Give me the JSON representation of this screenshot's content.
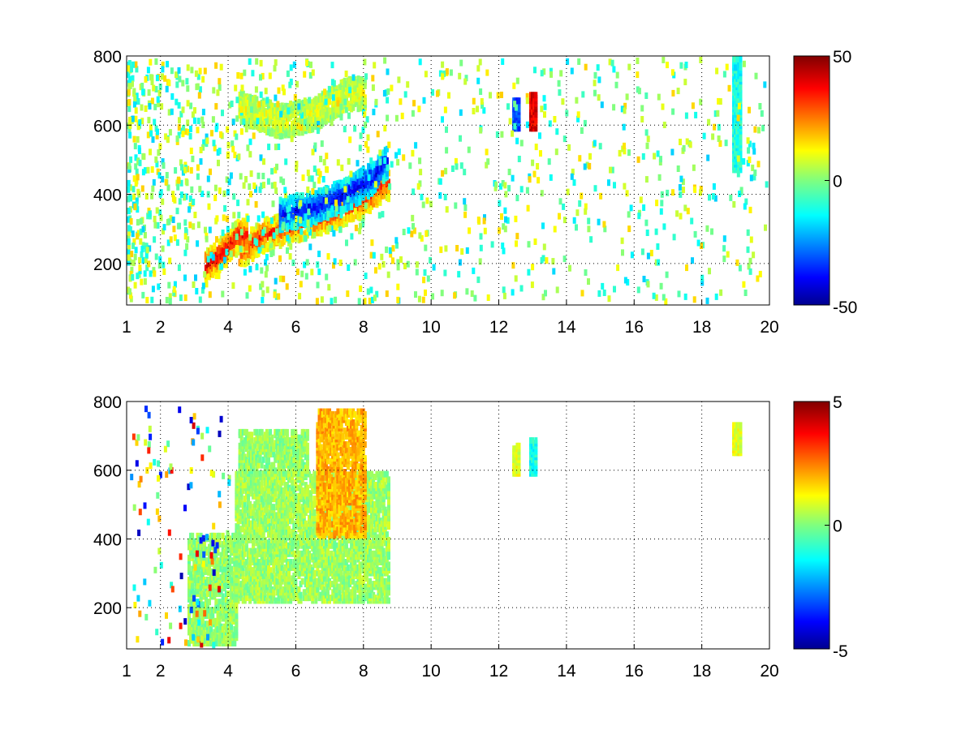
{
  "chart_data": [
    {
      "type": "heatmap",
      "title": "",
      "xlabel": "",
      "ylabel": "",
      "xlim": [
        1,
        20
      ],
      "ylim": [
        80,
        800
      ],
      "xticks": [
        1,
        2,
        4,
        6,
        8,
        10,
        12,
        14,
        16,
        18,
        20
      ],
      "yticks": [
        200,
        400,
        600,
        800
      ],
      "grid": true,
      "colormap": "jet",
      "colorbar": {
        "range": [
          -50,
          50
        ],
        "ticks": [
          -50,
          0,
          50
        ]
      },
      "features": [
        {
          "name": "lower arc",
          "x_range": [
            4.3,
            8.7
          ],
          "y_center_at_x": [
            [
              4.3,
              240
            ],
            [
              5.0,
              290
            ],
            [
              6.0,
              320
            ],
            [
              7.0,
              350
            ],
            [
              8.0,
              390
            ],
            [
              8.6,
              440
            ]
          ],
          "value": 35
        },
        {
          "name": "upper arc",
          "x_range": [
            5.5,
            8.7
          ],
          "y_center_at_x": [
            [
              5.5,
              350
            ],
            [
              6.5,
              370
            ],
            [
              7.5,
              410
            ],
            [
              8.3,
              460
            ],
            [
              8.7,
              510
            ]
          ],
          "value": -40
        },
        {
          "name": "rising branch",
          "x_range": [
            3.3,
            4.5
          ],
          "y_center_at_x": [
            [
              3.3,
              200
            ],
            [
              3.8,
              240
            ],
            [
              4.3,
              290
            ]
          ],
          "value": 40
        },
        {
          "name": "upper loop",
          "x_range": [
            4.3,
            8.0
          ],
          "y_center_at_x": [
            [
              4.3,
              660
            ],
            [
              5.5,
              620
            ],
            [
              6.5,
              640
            ],
            [
              7.5,
              700
            ]
          ],
          "value": 10
        },
        {
          "name": "strip at 12.5",
          "x_range": [
            12.4,
            12.6
          ],
          "y_range": [
            600,
            680
          ],
          "value": -30
        },
        {
          "name": "strip at 13",
          "x_range": [
            12.9,
            13.1
          ],
          "y_range": [
            600,
            700
          ],
          "value": 40
        },
        {
          "name": "strip at 19",
          "x_range": [
            18.9,
            19.1
          ],
          "y_range": [
            480,
            800
          ],
          "value": -10
        }
      ]
    },
    {
      "type": "heatmap",
      "title": "",
      "xlabel": "",
      "ylabel": "",
      "xlim": [
        1,
        20
      ],
      "ylim": [
        80,
        800
      ],
      "xticks": [
        1,
        2,
        4,
        6,
        8,
        10,
        12,
        14,
        16,
        18,
        20
      ],
      "yticks": [
        200,
        400,
        600,
        800
      ],
      "grid": true,
      "colormap": "jet",
      "colorbar": {
        "range": [
          -5,
          5
        ],
        "ticks": [
          -5,
          0,
          5
        ]
      },
      "features": [
        {
          "name": "main band",
          "x_range": [
            4.2,
            8.7
          ],
          "y_range": [
            230,
            600
          ],
          "value": 0.3
        },
        {
          "name": "upper streak",
          "x_range": [
            6.6,
            8.0
          ],
          "y_range": [
            420,
            780
          ],
          "value": 2
        },
        {
          "name": "rising branch",
          "x_range": [
            2.8,
            4.2
          ],
          "y_range": [
            90,
            420
          ],
          "value": 0.2
        },
        {
          "name": "upper loop",
          "x_range": [
            4.3,
            6.3
          ],
          "y_range": [
            600,
            720
          ],
          "value": 0.2
        },
        {
          "name": "strip at 12.5",
          "x_range": [
            12.4,
            12.6
          ],
          "y_range": [
            600,
            680
          ],
          "value": 1
        },
        {
          "name": "strip at 13",
          "x_range": [
            12.9,
            13.1
          ],
          "y_range": [
            600,
            700
          ],
          "value": -1
        },
        {
          "name": "strip at 19",
          "x_range": [
            18.9,
            19.1
          ],
          "y_range": [
            660,
            740
          ],
          "value": 1
        }
      ]
    }
  ]
}
